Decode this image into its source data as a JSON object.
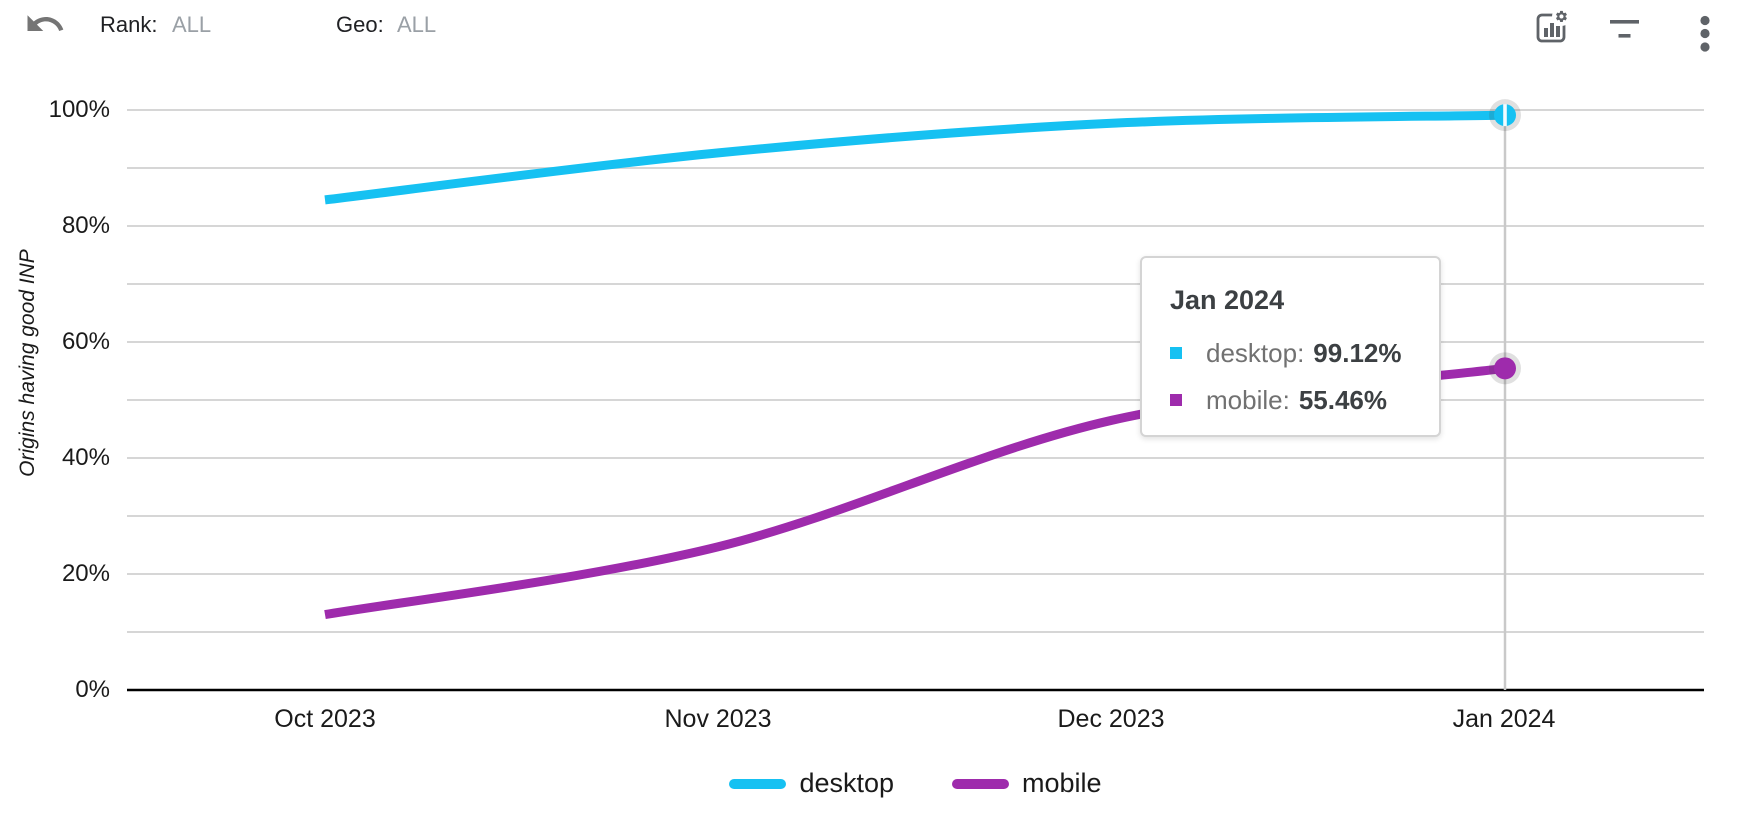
{
  "toolbar": {
    "undo_icon": "undo-arrow",
    "rank": {
      "label": "Rank:",
      "value": "ALL"
    },
    "geo": {
      "label": "Geo:",
      "value": "ALL"
    },
    "right_icons": [
      "chart-style-icon",
      "filter-icon",
      "more-vert-icon"
    ]
  },
  "chart_data": {
    "type": "line",
    "title": "",
    "xlabel": "",
    "ylabel": "Origins having good INP",
    "x": [
      "Oct 2023",
      "Nov 2023",
      "Dec 2023",
      "Jan 2024"
    ],
    "series": [
      {
        "name": "desktop",
        "color": "#16c1f2",
        "values": [
          84.5,
          92.6,
          97.7,
          99.12
        ]
      },
      {
        "name": "mobile",
        "color": "#9e2bac",
        "values": [
          13.0,
          24.7,
          46.5,
          55.46
        ]
      }
    ],
    "ylim": [
      0,
      100
    ],
    "yticks": [
      0,
      20,
      40,
      60,
      80,
      100
    ],
    "ytick_labels": [
      "0%",
      "20%",
      "40%",
      "60%",
      "80%",
      "100%"
    ],
    "gridline_step": 10,
    "grid": true,
    "legend_position": "bottom",
    "selected_index": 3,
    "selected_label": "Jan 2024"
  },
  "tooltip": {
    "title": "Jan 2024",
    "rows": [
      {
        "series": "desktop",
        "label": "desktop:",
        "value": "99.12%",
        "color": "#16c1f2"
      },
      {
        "series": "mobile",
        "label": "mobile:",
        "value": "55.46%",
        "color": "#9e2bac"
      }
    ]
  },
  "legend": [
    {
      "label": "desktop",
      "color": "#16c1f2"
    },
    {
      "label": "mobile",
      "color": "#9e2bac"
    }
  ],
  "colors": {
    "gridline": "#d6d6d6",
    "axis": "#000000",
    "crosshair": "#c9c9c9",
    "icon_gray": "#5f6368",
    "undo_gray": "#757575"
  }
}
